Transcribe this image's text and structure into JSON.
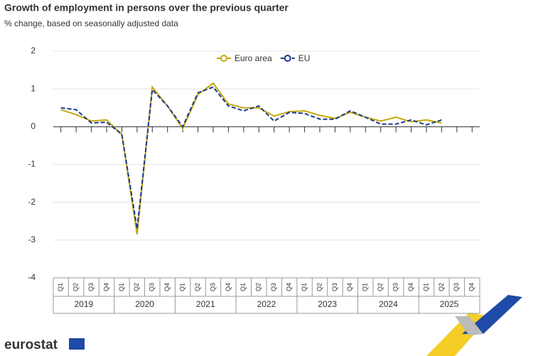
{
  "chart_data": {
    "type": "line",
    "title": "Growth of employment in persons over the previous quarter",
    "subtitle": "% change, based on seasonally adjusted data",
    "categories": [
      "Q1",
      "Q2",
      "Q3",
      "Q4",
      "Q1",
      "Q2",
      "Q3",
      "Q4",
      "Q1",
      "Q2",
      "Q3",
      "Q4",
      "Q1",
      "Q2",
      "Q3",
      "Q4",
      "Q1",
      "Q2",
      "Q3",
      "Q4",
      "Q1",
      "Q2",
      "Q3",
      "Q4",
      "Q1",
      "Q2",
      "Q3",
      "Q4"
    ],
    "years": [
      "2019",
      "2020",
      "2021",
      "2022",
      "2023",
      "2024",
      "2025"
    ],
    "series": [
      {
        "name": "Euro area",
        "color": "#c4a90a",
        "values": [
          0.45,
          0.32,
          0.15,
          0.18,
          -0.2,
          -2.85,
          1.05,
          0.55,
          -0.05,
          0.85,
          1.15,
          0.6,
          0.5,
          0.5,
          0.28,
          0.4,
          0.42,
          0.3,
          0.22,
          0.38,
          0.25,
          0.15,
          0.25,
          0.13,
          0.18,
          0.1,
          null,
          null
        ]
      },
      {
        "name": "EU",
        "color": "#1b3a8c",
        "values": [
          0.5,
          0.45,
          0.1,
          0.12,
          -0.2,
          -2.7,
          0.98,
          0.55,
          0.0,
          0.9,
          1.05,
          0.55,
          0.42,
          0.55,
          0.15,
          0.38,
          0.35,
          0.2,
          0.2,
          0.42,
          0.25,
          0.07,
          0.07,
          0.18,
          0.05,
          0.18,
          null,
          null
        ]
      }
    ],
    "ylim": [
      -4,
      2
    ],
    "yticks": [
      -4,
      -3,
      -2,
      -1,
      0,
      1,
      2
    ],
    "grid": true,
    "logo": "eurostat"
  }
}
